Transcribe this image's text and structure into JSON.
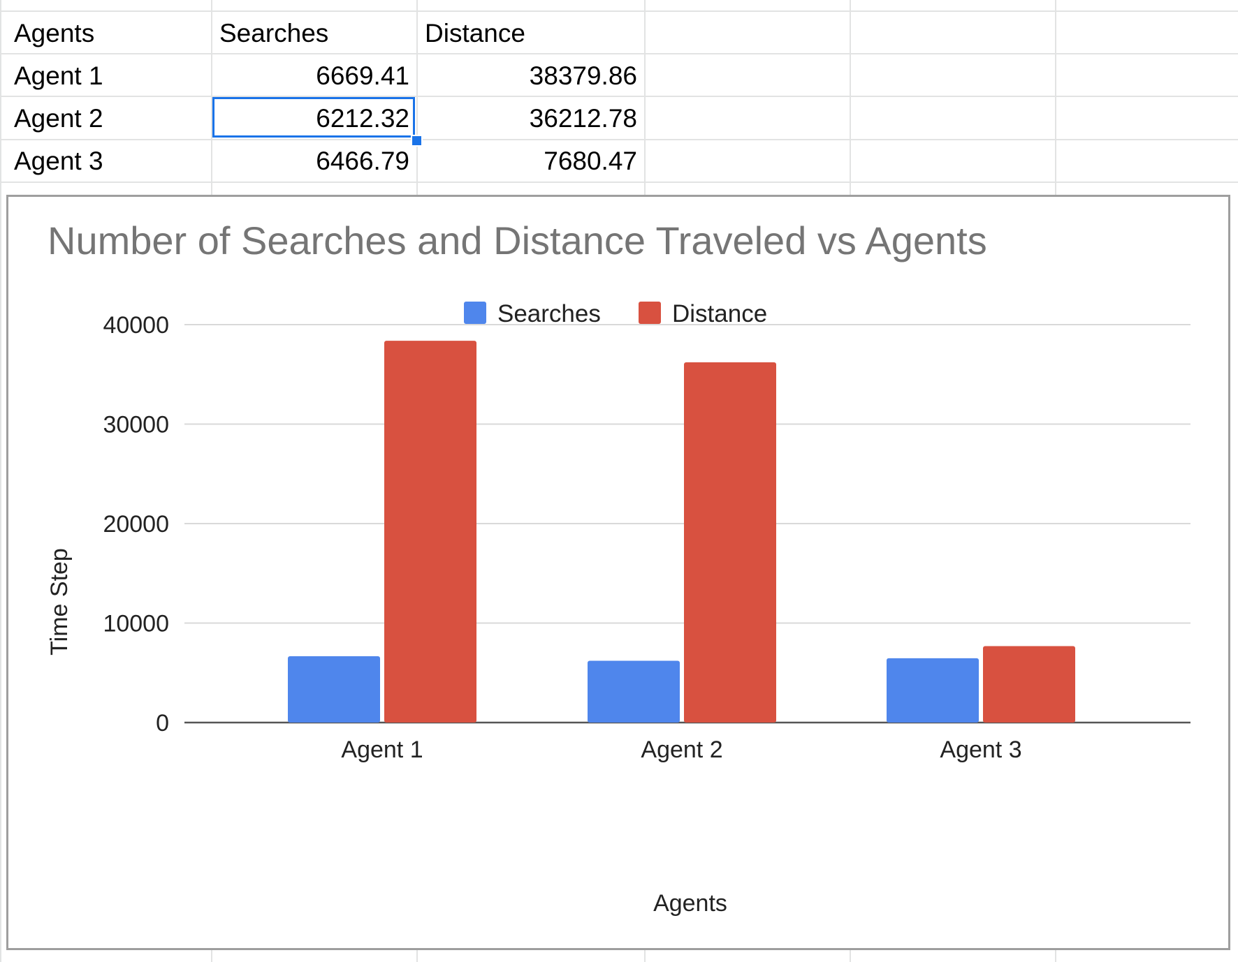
{
  "sheet": {
    "headers": [
      "Agents",
      "Searches",
      "Distance"
    ],
    "rows": [
      [
        "Agent 1",
        "6669.41",
        "38379.86"
      ],
      [
        "Agent 2",
        "6212.32",
        "36212.78"
      ],
      [
        "Agent 3",
        "6466.79",
        "7680.47"
      ]
    ],
    "selected_cell": "6212.32"
  },
  "chart_data": {
    "type": "bar",
    "title": "Number of Searches and Distance Traveled vs Agents",
    "xlabel": "Agents",
    "ylabel": "Time Step",
    "categories": [
      "Agent 1",
      "Agent 2",
      "Agent 3"
    ],
    "series": [
      {
        "name": "Searches",
        "values": [
          6669.41,
          6212.32,
          6466.79
        ],
        "color": "#4f86ec"
      },
      {
        "name": "Distance",
        "values": [
          38379.86,
          36212.78,
          7680.47
        ],
        "color": "#d85140"
      }
    ],
    "ylim": [
      0,
      40000
    ],
    "yticks": [
      "0",
      "10000",
      "20000",
      "30000",
      "40000"
    ],
    "grid": true,
    "legend": "top"
  }
}
